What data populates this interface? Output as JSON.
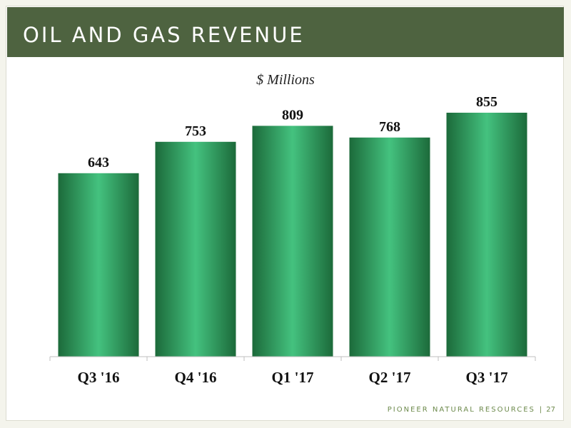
{
  "slide": {
    "title": "OIL AND GAS REVENUE",
    "footer_company": "PIONEER NATURAL RESOURCES",
    "footer_separator": "|",
    "page_number": "27"
  },
  "colors": {
    "title_bar": "#4e6340",
    "bar_dark": "#1c6a3a",
    "bar_light": "#44c27f",
    "footer_text": "#6d8a4c"
  },
  "chart_data": {
    "type": "bar",
    "title": "",
    "subtitle": "$ Millions",
    "xlabel": "",
    "ylabel": "",
    "categories": [
      "Q3 '16",
      "Q4 '16",
      "Q1 '17",
      "Q2 '17",
      "Q3 '17"
    ],
    "values": [
      643,
      753,
      809,
      768,
      855
    ],
    "data_labels": [
      "643",
      "753",
      "809",
      "768",
      "855"
    ],
    "ylim": [
      0,
      1000
    ],
    "grid": false,
    "legend": "none"
  }
}
